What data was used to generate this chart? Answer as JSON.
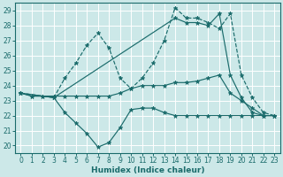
{
  "xlabel": "Humidex (Indice chaleur)",
  "xlim": [
    -0.5,
    23.5
  ],
  "ylim": [
    19.5,
    29.5
  ],
  "xticks": [
    0,
    1,
    2,
    3,
    4,
    5,
    6,
    7,
    8,
    9,
    10,
    11,
    12,
    13,
    14,
    15,
    16,
    17,
    18,
    19,
    20,
    21,
    22,
    23
  ],
  "yticks": [
    20,
    21,
    22,
    23,
    24,
    25,
    26,
    27,
    28,
    29
  ],
  "bg_color": "#cce8e8",
  "line_color": "#1a6b6b",
  "grid_color": "#ffffff",
  "lines": [
    {
      "x": [
        0,
        1,
        2,
        3,
        4,
        5,
        6,
        7,
        8,
        9,
        10,
        11,
        12,
        13,
        14,
        15,
        16,
        17,
        18,
        19,
        20,
        21,
        22,
        23
      ],
      "y": [
        23.5,
        23.3,
        23.3,
        23.2,
        22.2,
        21.5,
        20.8,
        19.9,
        20.2,
        21.2,
        22.4,
        22.5,
        22.5,
        22.2,
        22.0,
        22.0,
        22.0,
        22.0,
        22.0,
        22.0,
        22.0,
        22.0,
        22.0,
        22.0
      ],
      "style": "-"
    },
    {
      "x": [
        0,
        1,
        2,
        3,
        4,
        5,
        6,
        7,
        8,
        9,
        10,
        11,
        12,
        13,
        14,
        15,
        16,
        17,
        18,
        19,
        20,
        21,
        22,
        23
      ],
      "y": [
        23.5,
        23.3,
        23.3,
        23.3,
        23.3,
        23.3,
        23.3,
        23.3,
        23.3,
        23.5,
        23.8,
        24.0,
        24.0,
        24.0,
        24.2,
        24.2,
        24.3,
        24.5,
        24.7,
        23.5,
        23.0,
        22.5,
        22.0,
        22.0
      ],
      "style": "-"
    },
    {
      "x": [
        0,
        3,
        4,
        5,
        6,
        7,
        8,
        9,
        10,
        11,
        12,
        13,
        14,
        15,
        16,
        17,
        18,
        19,
        20,
        21,
        22,
        23
      ],
      "y": [
        23.5,
        23.2,
        24.5,
        25.5,
        26.7,
        27.5,
        26.5,
        24.5,
        23.8,
        24.5,
        25.5,
        27.0,
        29.2,
        28.5,
        28.5,
        28.2,
        27.8,
        28.8,
        24.7,
        23.2,
        22.2,
        22.0
      ],
      "style": "--"
    },
    {
      "x": [
        0,
        3,
        14,
        15,
        16,
        17,
        18,
        19,
        20,
        21,
        22,
        23
      ],
      "y": [
        23.5,
        23.2,
        28.5,
        28.2,
        28.2,
        28.0,
        28.8,
        24.7,
        23.2,
        22.2,
        22.0,
        22.0
      ],
      "style": "-"
    }
  ]
}
